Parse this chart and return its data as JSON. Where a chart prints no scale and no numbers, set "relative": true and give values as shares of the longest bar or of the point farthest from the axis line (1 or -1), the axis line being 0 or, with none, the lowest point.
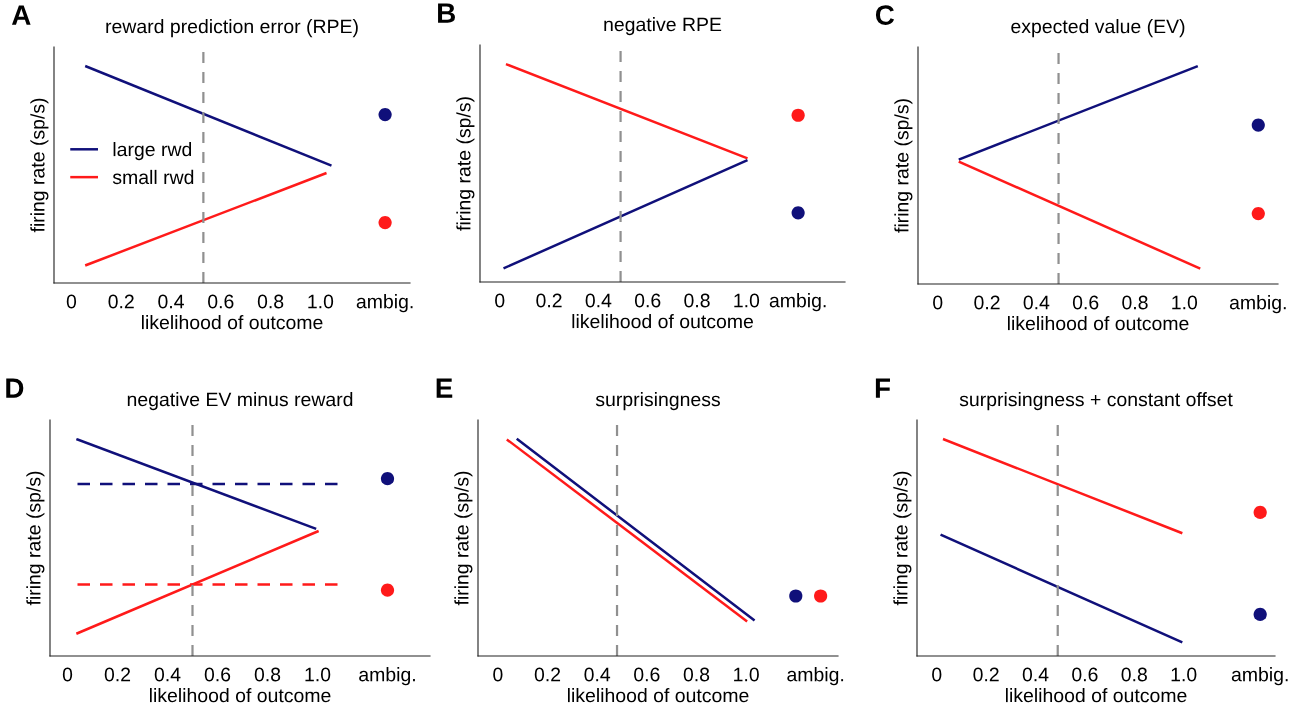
{
  "chart_data": [
    {
      "type": "line",
      "title": "reward prediction error (RPE)",
      "annotations": [
        "A"
      ],
      "xlabel": "likelihood of outcome",
      "ylabel": "firing rate (sp/s)",
      "relative": true,
      "xlim": [
        -0.07,
        1.36
      ],
      "xticks": [
        0,
        0.2,
        0.4,
        0.6,
        0.8,
        {
          "value": 1.0,
          "label": "1.0"
        },
        {
          "value": 1.26,
          "label": "ambig."
        }
      ],
      "legend": "center left",
      "ref_lines": [
        {
          "axis": "x",
          "value": 0.53,
          "color": "#909090",
          "line_style": "dashed"
        }
      ],
      "series": [
        {
          "name": "large rwd",
          "color": "#10107a",
          "x": [
            0.06,
            1.04
          ],
          "values": [
            1,
            0.544
          ]
        },
        {
          "name": "small rwd",
          "color": "#ff1a1a",
          "x": [
            0.06,
            1.02
          ],
          "values": [
            0.083,
            0.506
          ]
        },
        {
          "type": "scatter",
          "color": "#10107a",
          "x": [
            1.26
          ],
          "values": [
            0.778
          ]
        },
        {
          "type": "scatter",
          "color": "#ff1a1a",
          "x": [
            1.26
          ],
          "values": [
            0.279
          ]
        }
      ]
    },
    {
      "type": "line",
      "title": "negative RPE",
      "annotations": [
        "B"
      ],
      "xlabel": "likelihood of outcome",
      "ylabel": "firing rate (sp/s)",
      "relative": true,
      "xlim": [
        -0.08,
        1.4
      ],
      "xticks": [
        0,
        0.2,
        0.4,
        0.6,
        0.8,
        {
          "value": 1.0,
          "label": "1.0"
        },
        {
          "value": 1.21,
          "label": "ambig."
        }
      ],
      "ref_lines": [
        {
          "axis": "x",
          "value": 0.49,
          "color": "#909090",
          "line_style": "dashed"
        }
      ],
      "series": [
        {
          "color": "#ff1a1a",
          "x": [
            0.03,
            1.0
          ],
          "values": [
            1,
            0.571
          ]
        },
        {
          "color": "#10107a",
          "x": [
            0.02,
            1.0
          ],
          "values": [
            0.065,
            0.558
          ]
        },
        {
          "type": "scatter",
          "color": "#ff1a1a",
          "x": [
            1.21
          ],
          "values": [
            0.767
          ]
        },
        {
          "type": "scatter",
          "color": "#10107a",
          "x": [
            1.21
          ],
          "values": [
            0.318
          ]
        }
      ]
    },
    {
      "type": "line",
      "title": "expected value (EV)",
      "annotations": [
        "C"
      ],
      "xlabel": "likelihood of outcome",
      "ylabel": "firing rate (sp/s)",
      "relative": true,
      "xlim": [
        -0.08,
        1.38
      ],
      "xticks": [
        0,
        0.2,
        0.4,
        0.6,
        0.8,
        {
          "value": 1.0,
          "label": "1.0"
        },
        {
          "value": 1.3,
          "label": "ambig."
        }
      ],
      "ref_lines": [
        {
          "axis": "x",
          "value": 0.49,
          "color": "#909090",
          "line_style": "dashed"
        }
      ],
      "series": [
        {
          "color": "#10107a",
          "x": [
            0.09,
            1.05
          ],
          "values": [
            0.574,
            1
          ]
        },
        {
          "color": "#ff1a1a",
          "x": [
            0.09,
            1.06
          ],
          "values": [
            0.561,
            0.073
          ]
        },
        {
          "type": "scatter",
          "color": "#10107a",
          "x": [
            1.3
          ],
          "values": [
            0.731
          ]
        },
        {
          "type": "scatter",
          "color": "#ff1a1a",
          "x": [
            1.3
          ],
          "values": [
            0.324
          ]
        }
      ]
    },
    {
      "type": "line",
      "title": "negative EV minus reward",
      "annotations": [
        "D"
      ],
      "xlabel": "likelihood of outcome",
      "ylabel": "firing rate (sp/s)",
      "relative": true,
      "xlim": [
        -0.07,
        1.45
      ],
      "xticks": [
        0,
        0.2,
        0.4,
        0.6,
        0.8,
        {
          "value": 1.0,
          "label": "1.0"
        },
        {
          "value": 1.28,
          "label": "ambig."
        }
      ],
      "ref_lines": [
        {
          "axis": "x",
          "value": 0.5,
          "color": "#909090",
          "line_style": "dashed"
        }
      ],
      "series": [
        {
          "color": "#10107a",
          "x": [
            0.04,
            0.99
          ],
          "values": [
            1,
            0.589
          ]
        },
        {
          "color": "#ff1a1a",
          "x": [
            0.04,
            1.0
          ],
          "values": [
            0.105,
            0.575
          ]
        },
        {
          "color": "#10107a",
          "line_style": "dashed",
          "x": [
            0.04,
            1.08
          ],
          "values": [
            0.794,
            0.794
          ]
        },
        {
          "color": "#ff1a1a",
          "line_style": "dashed",
          "x": [
            0.04,
            1.08
          ],
          "values": [
            0.33,
            0.33
          ]
        },
        {
          "type": "scatter",
          "color": "#10107a",
          "x": [
            1.28
          ],
          "values": [
            0.819
          ]
        },
        {
          "type": "scatter",
          "color": "#ff1a1a",
          "x": [
            1.28
          ],
          "values": [
            0.304
          ]
        }
      ]
    },
    {
      "type": "line",
      "title": "surprisingness",
      "annotations": [
        "E"
      ],
      "xlabel": "likelihood of outcome",
      "ylabel": "firing rate (sp/s)",
      "relative": true,
      "xlim": [
        -0.08,
        1.37
      ],
      "xticks": [
        0,
        0.2,
        0.4,
        0.6,
        0.8,
        {
          "value": 1.0,
          "label": "1.0"
        },
        {
          "value": 1.28,
          "label": "ambig."
        }
      ],
      "ref_lines": [
        {
          "axis": "x",
          "value": 0.48,
          "color": "#909090",
          "line_style": "dashed"
        }
      ],
      "series": [
        {
          "color": "#10107a",
          "x": [
            0.08,
            1.03
          ],
          "values": [
            1,
            0.167
          ]
        },
        {
          "color": "#ff1a1a",
          "x": [
            0.04,
            1.0
          ],
          "values": [
            0.997,
            0.163
          ]
        },
        {
          "type": "scatter",
          "color": "#10107a",
          "x": [
            1.2
          ],
          "values": [
            0.277
          ]
        },
        {
          "type": "scatter",
          "color": "#ff1a1a",
          "x": [
            1.3
          ],
          "values": [
            0.277
          ]
        }
      ]
    },
    {
      "type": "line",
      "title": "surprisingness + constant offset",
      "annotations": [
        "F"
      ],
      "xlabel": "likelihood of outcome",
      "ylabel": "firing rate (sp/s)",
      "relative": true,
      "xlim": [
        -0.08,
        1.37
      ],
      "xticks": [
        0,
        0.2,
        0.4,
        0.6,
        0.8,
        {
          "value": 1.0,
          "label": "1.0"
        },
        {
          "value": 1.31,
          "label": "ambig."
        }
      ],
      "ref_lines": [
        {
          "axis": "x",
          "value": 0.49,
          "color": "#909090",
          "line_style": "dashed"
        }
      ],
      "series": [
        {
          "color": "#ff1a1a",
          "x": [
            0.03,
            0.99
          ],
          "values": [
            1,
            0.569
          ]
        },
        {
          "color": "#10107a",
          "x": [
            0.02,
            0.99
          ],
          "values": [
            0.558,
            0.065
          ]
        },
        {
          "type": "scatter",
          "color": "#ff1a1a",
          "x": [
            1.31
          ],
          "values": [
            0.663
          ]
        },
        {
          "type": "scatter",
          "color": "#10107a",
          "x": [
            1.31
          ],
          "values": [
            0.192
          ]
        }
      ]
    }
  ]
}
